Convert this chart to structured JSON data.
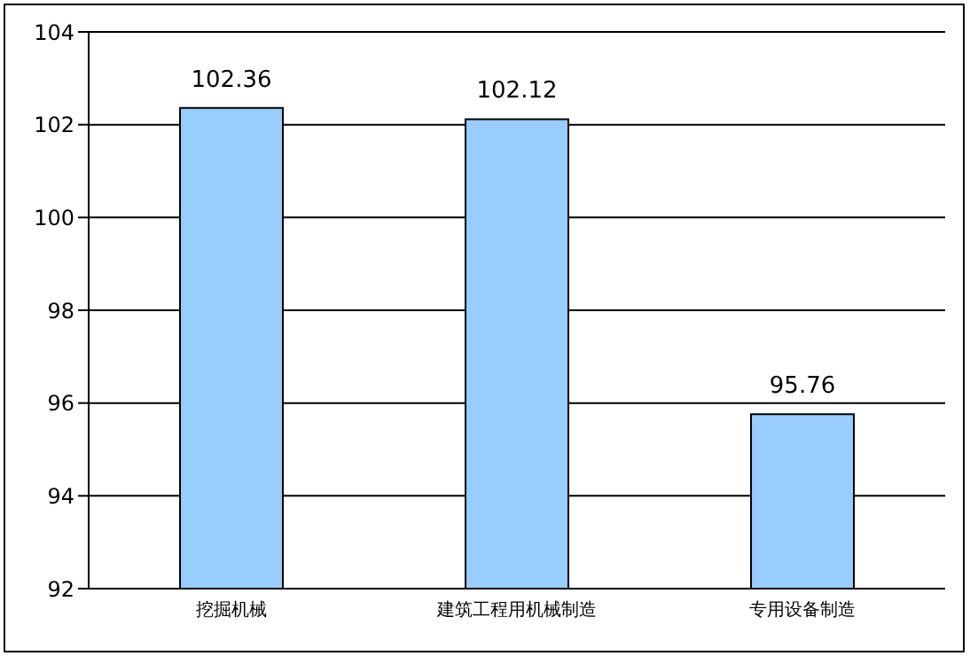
{
  "chart_data": {
    "type": "bar",
    "categories": [
      "挖掘机械",
      "建筑工程用机械制造",
      "专用设备制造"
    ],
    "values": [
      102.36,
      102.12,
      95.76
    ],
    "color": "#99ccff",
    "ylim": [
      92,
      104
    ],
    "yticks": [
      92,
      94,
      96,
      98,
      100,
      102,
      104
    ],
    "grid": "y",
    "data_labels": true
  }
}
